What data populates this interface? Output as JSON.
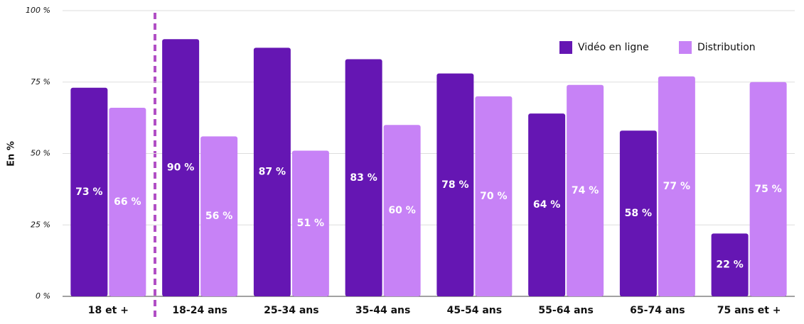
{
  "chart_data": {
    "type": "bar",
    "y_label": "En %",
    "categories": [
      "18 et +",
      "18-24 ans",
      "25-34 ans",
      "35-44 ans",
      "45-54 ans",
      "55-64 ans",
      "65-74 ans",
      "75 ans et +"
    ],
    "series": [
      {
        "name": "Vidéo en ligne",
        "color": "#6516b3",
        "values": [
          73,
          90,
          87,
          83,
          78,
          64,
          58,
          22
        ],
        "value_labels": [
          "73 %",
          "90 %",
          "87 %",
          "83 %",
          "78 %",
          "64 %",
          "58 %",
          "22 %"
        ]
      },
      {
        "name": "Distribution",
        "color": "#c782f6",
        "values": [
          66,
          56,
          51,
          60,
          70,
          74,
          77,
          75
        ],
        "value_labels": [
          "66 %",
          "56 %",
          "51 %",
          "60 %",
          "70 %",
          "74 %",
          "77 %",
          "75 %"
        ]
      }
    ],
    "ylim": [
      0,
      100
    ],
    "yticks": [
      {
        "value": 0,
        "label": "0 %"
      },
      {
        "value": 25,
        "label": "25 %"
      },
      {
        "value": 50,
        "label": "50 %"
      },
      {
        "value": 75,
        "label": "75 %"
      },
      {
        "value": 100,
        "label": "100 %"
      }
    ],
    "grid": true,
    "legend": "top-right"
  }
}
